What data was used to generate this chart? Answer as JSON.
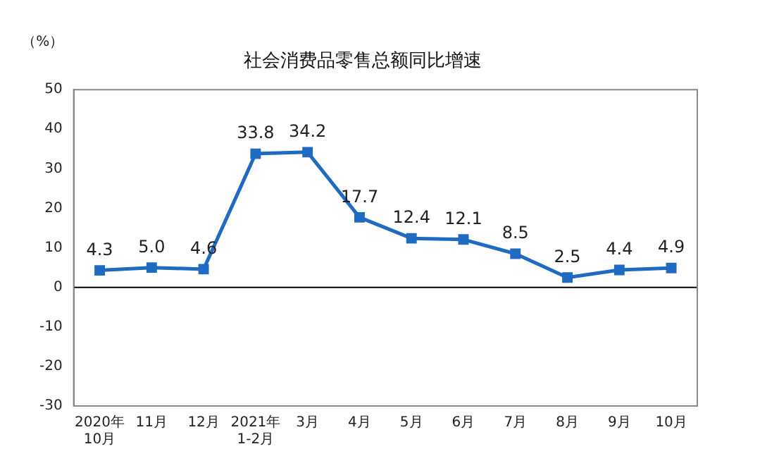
{
  "chart_data": {
    "type": "line",
    "title": "社会消费品零售总额同比增速",
    "ylabel": "（%）",
    "categories": [
      "2020年\n10月",
      "11月",
      "12月",
      "2021年\n1-2月",
      "3月",
      "4月",
      "5月",
      "6月",
      "7月",
      "8月",
      "9月",
      "10月"
    ],
    "series": [
      {
        "color": "#1f6bc1",
        "values": [
          4.3,
          5.0,
          4.6,
          33.8,
          34.2,
          17.7,
          12.4,
          12.1,
          8.5,
          2.5,
          4.4,
          4.9
        ],
        "value_labels": [
          "4.3",
          "5.0",
          "4.6",
          "33.8",
          "34.2",
          "17.7",
          "12.4",
          "12.1",
          "8.5",
          "2.5",
          "4.4",
          "4.9"
        ]
      }
    ],
    "ylim": [
      -30,
      50
    ],
    "yticks": [
      -30,
      -20,
      -10,
      0,
      10,
      20,
      30,
      40,
      50
    ],
    "ref_lines": [
      {
        "axis": "y",
        "value": 0,
        "color": "#000000"
      }
    ],
    "grid": false,
    "legend": false,
    "marker": "square",
    "line_style": "solid"
  }
}
